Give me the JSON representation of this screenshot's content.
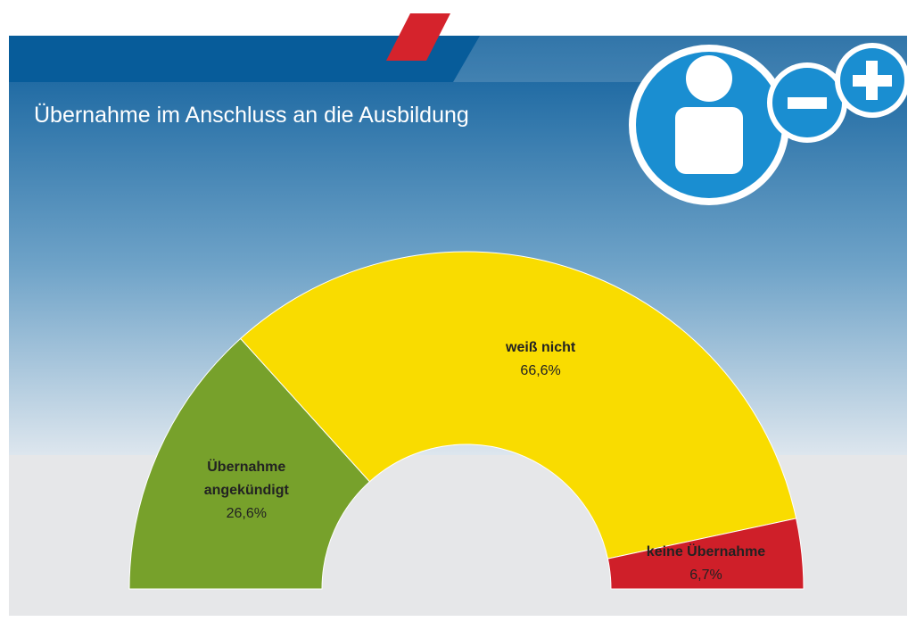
{
  "chart_data": {
    "type": "half-donut",
    "title": "Übernahme im Anschluss an die Ausbildung",
    "categories": [
      "Übernahme angekündigt",
      "weiß nicht",
      "keine Übernahme"
    ],
    "values": [
      26.6,
      66.6,
      6.7
    ],
    "value_labels": [
      "26,6%",
      "66,6%",
      "6,7%"
    ],
    "colors": [
      "#77a12b",
      "#f9dc00",
      "#cf1f29"
    ]
  }
}
